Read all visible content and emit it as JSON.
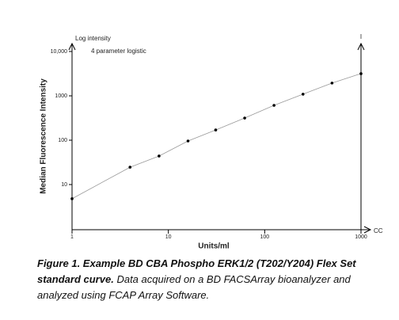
{
  "chart_data": {
    "type": "scatter",
    "y_axis_note": "Log intensity",
    "annotation": "4 parameter logistic",
    "ylabel": "Median Fluorescence Intensity",
    "xlabel": "Units/ml",
    "right_axis_label": "I",
    "x_axis_end_label": "CC",
    "log_x": true,
    "log_y": true,
    "xlim": [
      1,
      1000
    ],
    "ylim": [
      1,
      10000
    ],
    "xticks": [
      1,
      10,
      100,
      1000
    ],
    "yticks": [
      10,
      100,
      1000,
      {
        "value": 10000,
        "label": "10,000"
      }
    ],
    "color": "#000000",
    "curve_color": "#999999",
    "x": [
      1,
      4,
      8,
      16,
      31,
      62,
      125,
      250,
      500,
      1000
    ],
    "values": [
      4.8,
      24.6,
      44,
      96,
      170,
      316,
      610,
      1090,
      1940,
      3170
    ]
  },
  "caption": {
    "title": "Figure 1. Example BD CBA Phospho ERK1/2 (T202/Y204) Flex Set standard curve.",
    "text": "Data acquired on a BD FACSArray bioanalyzer and analyzed using FCAP Array Software."
  }
}
